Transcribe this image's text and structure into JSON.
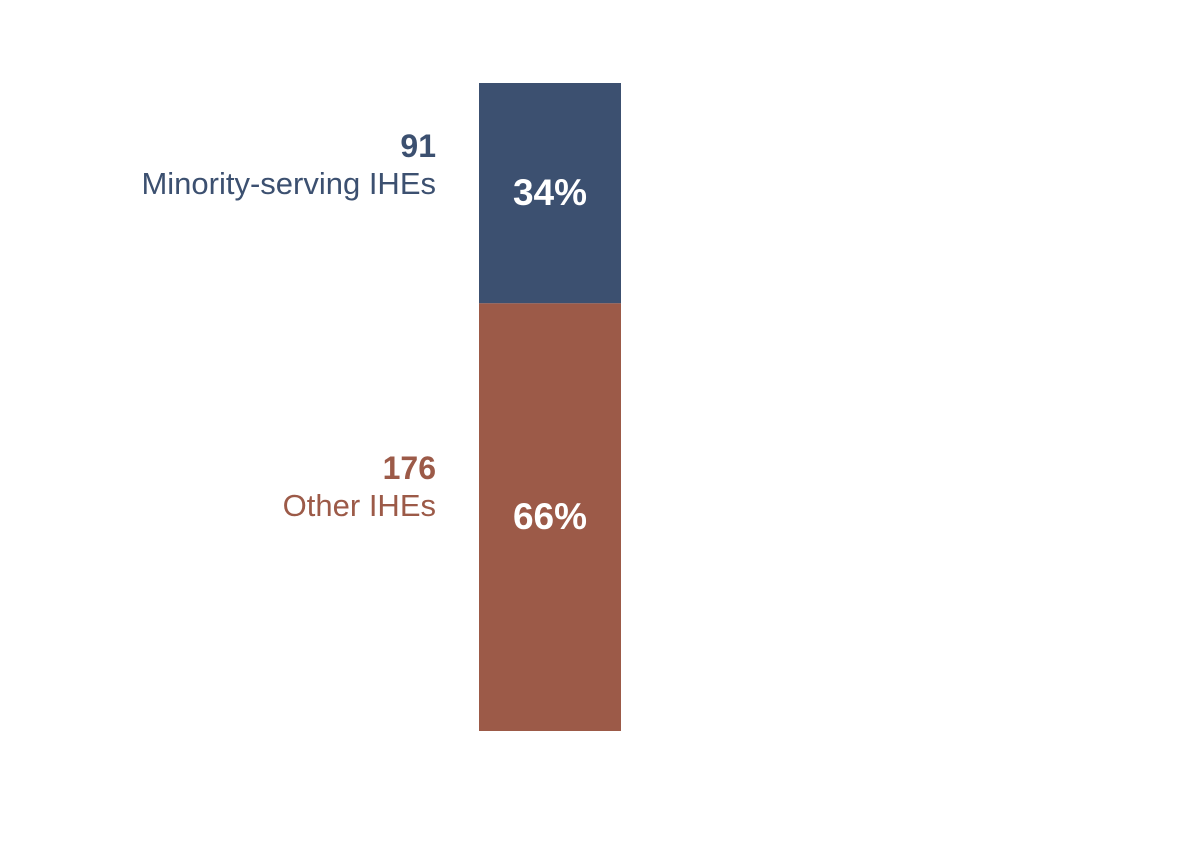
{
  "chart_data": {
    "type": "bar",
    "stacked": true,
    "orientation": "vertical",
    "series": [
      {
        "name": "Minority-serving IHEs",
        "count": "91",
        "percent_label": "34%",
        "value": 34,
        "color": "#3c5070"
      },
      {
        "name": "Other IHEs",
        "count": "176",
        "percent_label": "66%",
        "value": 66,
        "color": "#9c5a48"
      }
    ],
    "ylim": [
      0,
      100
    ],
    "grid": false,
    "legend": "none"
  }
}
